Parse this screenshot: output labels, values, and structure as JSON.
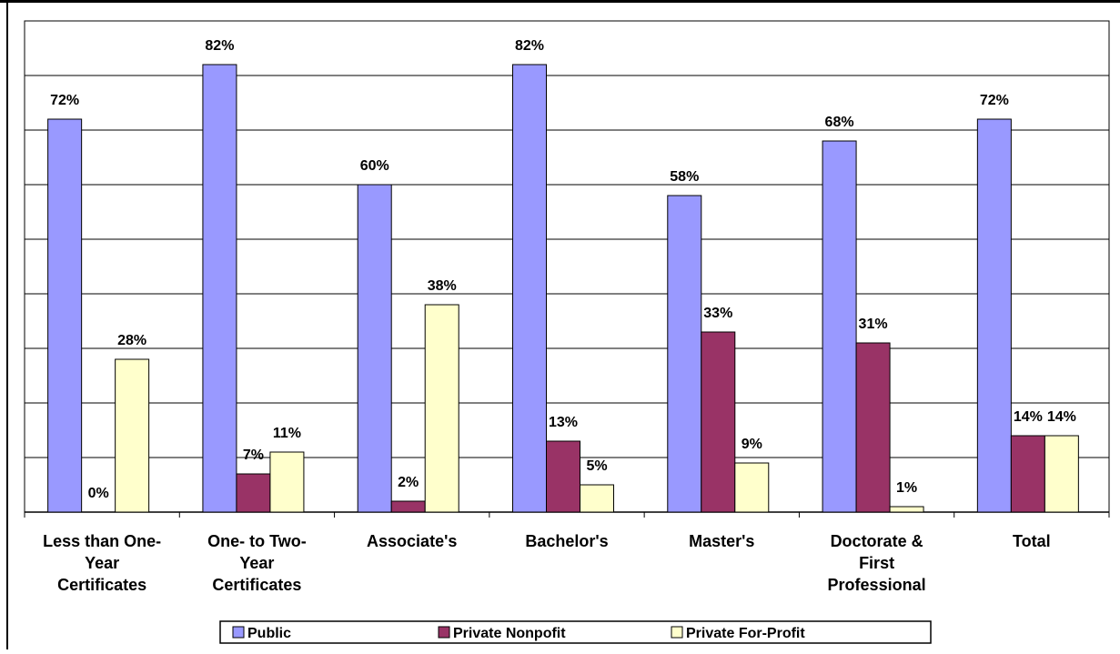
{
  "chart_data": {
    "type": "bar",
    "categories": [
      [
        "Less than One-",
        "Year",
        "Certificates"
      ],
      [
        "One- to Two-",
        "Year",
        "Certificates"
      ],
      [
        "Associate's"
      ],
      [
        "Bachelor's"
      ],
      [
        "Master's"
      ],
      [
        "Doctorate &",
        "First",
        "Professional"
      ],
      [
        "Total"
      ]
    ],
    "ylim": [
      0,
      90
    ],
    "grid": true,
    "legend_position": "bottom",
    "series": [
      {
        "name": "Public",
        "color": "#9999ff",
        "values": [
          72,
          82,
          60,
          82,
          58,
          68,
          72
        ],
        "labels": [
          "72%",
          "82%",
          "60%",
          "82%",
          "58%",
          "68%",
          "72%"
        ]
      },
      {
        "name": "Private Nonpofit",
        "color": "#993366",
        "values": [
          0,
          7,
          2,
          13,
          33,
          31,
          14
        ],
        "labels": [
          "0%",
          "7%",
          "2%",
          "13%",
          "33%",
          "31%",
          "14%"
        ]
      },
      {
        "name": "Private For-Profit",
        "color": "#ffffcc",
        "values": [
          28,
          11,
          38,
          5,
          9,
          1,
          14
        ],
        "labels": [
          "28%",
          "11%",
          "38%",
          "5%",
          "9%",
          "1%",
          "14%"
        ]
      }
    ]
  }
}
